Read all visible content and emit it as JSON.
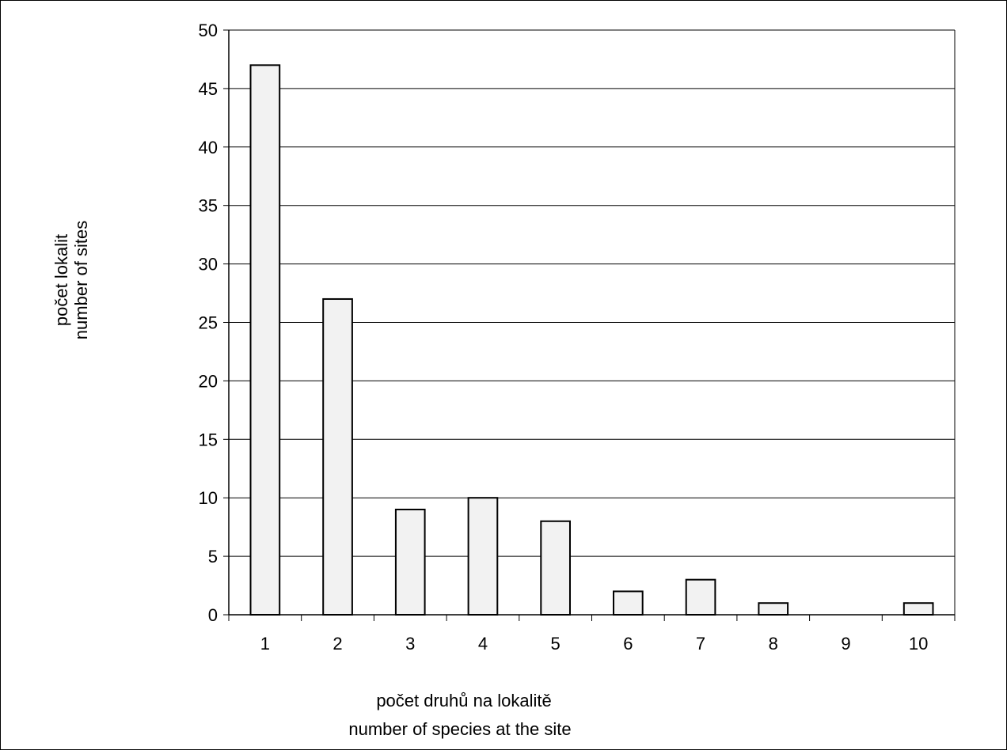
{
  "chart_data": {
    "type": "bar",
    "categories": [
      "1",
      "2",
      "3",
      "4",
      "5",
      "6",
      "7",
      "8",
      "9",
      "10"
    ],
    "values": [
      47,
      27,
      9,
      10,
      8,
      2,
      3,
      1,
      0,
      1
    ],
    "title": "",
    "ylabel_lines": [
      "počet lokalit",
      "number of sites"
    ],
    "xlabel_lines": [
      "počet druhů na lokalitě",
      "number of species at the site"
    ],
    "ylim": [
      0,
      50
    ],
    "yticks": [
      "0",
      "5",
      "10",
      "15",
      "20",
      "25",
      "30",
      "35",
      "40",
      "45",
      "50"
    ],
    "grid": "horizontal",
    "legend": "none",
    "bar_fill": "#f2f2f2",
    "bar_stroke": "#000000"
  }
}
